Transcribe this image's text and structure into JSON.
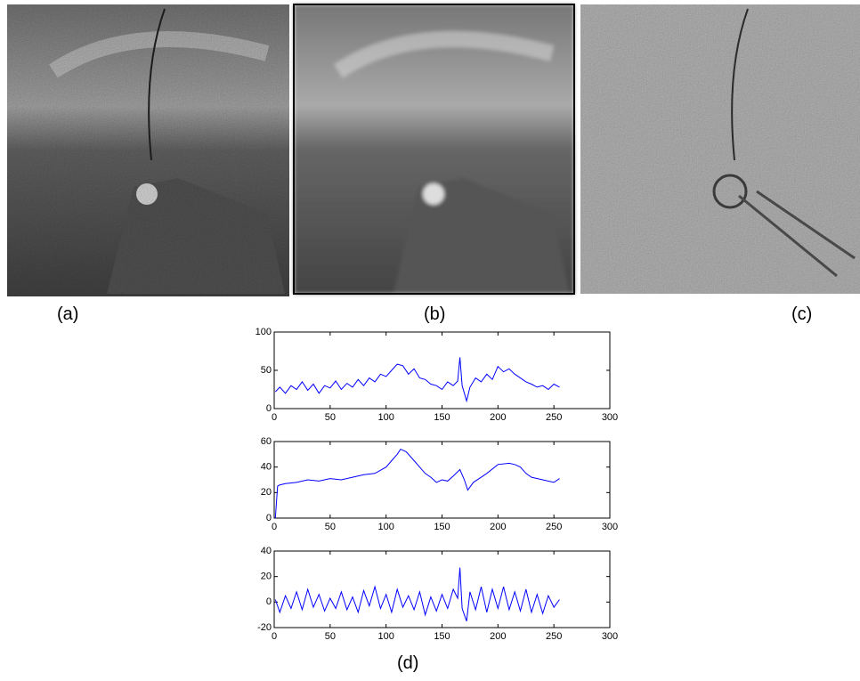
{
  "panel_labels": [
    "(a)",
    "(b)",
    "(c)",
    "(d)"
  ],
  "chart_data": [
    {
      "type": "line",
      "color": "#0000ff",
      "x": [
        1,
        5,
        10,
        15,
        20,
        25,
        30,
        35,
        40,
        45,
        50,
        55,
        60,
        65,
        70,
        75,
        80,
        85,
        90,
        95,
        100,
        105,
        110,
        115,
        120,
        125,
        130,
        135,
        140,
        145,
        150,
        155,
        160,
        164,
        166,
        168,
        172,
        175,
        180,
        185,
        190,
        195,
        200,
        205,
        210,
        215,
        220,
        225,
        230,
        235,
        240,
        245,
        250,
        255
      ],
      "values": [
        22,
        28,
        20,
        30,
        25,
        35,
        24,
        32,
        20,
        30,
        27,
        36,
        25,
        33,
        28,
        38,
        30,
        40,
        35,
        45,
        42,
        50,
        58,
        56,
        45,
        52,
        40,
        38,
        32,
        30,
        25,
        35,
        30,
        36,
        67,
        30,
        10,
        28,
        40,
        35,
        45,
        38,
        55,
        48,
        52,
        45,
        40,
        35,
        32,
        28,
        30,
        25,
        32,
        28
      ],
      "xlim": [
        0,
        300
      ],
      "xticks": [
        0,
        50,
        100,
        150,
        200,
        250,
        300
      ],
      "ylim": [
        0,
        100
      ],
      "yticks": [
        0,
        50,
        100
      ]
    },
    {
      "type": "line",
      "color": "#0000ff",
      "x": [
        1,
        3,
        5,
        10,
        20,
        30,
        40,
        50,
        60,
        70,
        80,
        90,
        100,
        105,
        110,
        113,
        118,
        125,
        130,
        135,
        140,
        145,
        150,
        155,
        160,
        166,
        170,
        173,
        178,
        185,
        190,
        200,
        210,
        215,
        220,
        225,
        230,
        240,
        250,
        255
      ],
      "values": [
        0,
        25,
        26,
        27,
        28,
        30,
        29,
        31,
        30,
        32,
        34,
        35,
        40,
        45,
        50,
        54,
        52,
        45,
        40,
        35,
        32,
        28,
        30,
        29,
        33,
        38,
        30,
        22,
        28,
        32,
        35,
        42,
        43,
        42,
        40,
        35,
        32,
        30,
        28,
        31
      ],
      "xlim": [
        0,
        300
      ],
      "xticks": [
        0,
        50,
        100,
        150,
        200,
        250,
        300
      ],
      "ylim": [
        0,
        60
      ],
      "yticks": [
        0,
        20,
        40,
        60
      ]
    },
    {
      "type": "line",
      "color": "#0000ff",
      "x": [
        1,
        5,
        10,
        15,
        20,
        25,
        30,
        35,
        40,
        45,
        50,
        55,
        60,
        65,
        70,
        75,
        80,
        85,
        90,
        95,
        100,
        105,
        110,
        115,
        120,
        125,
        130,
        135,
        140,
        145,
        150,
        155,
        160,
        164,
        166,
        168,
        172,
        175,
        180,
        185,
        190,
        195,
        200,
        205,
        210,
        215,
        220,
        225,
        230,
        235,
        240,
        245,
        250,
        255
      ],
      "values": [
        2,
        -8,
        5,
        -5,
        8,
        -6,
        10,
        -4,
        6,
        -7,
        3,
        -5,
        8,
        -6,
        4,
        -8,
        9,
        -3,
        12,
        -5,
        6,
        -8,
        10,
        -4,
        5,
        -6,
        8,
        -10,
        4,
        -7,
        6,
        -5,
        10,
        3,
        27,
        -5,
        -15,
        8,
        -6,
        12,
        -8,
        10,
        -5,
        12,
        -6,
        8,
        -7,
        10,
        -8,
        6,
        -9,
        5,
        -4,
        2
      ],
      "xlim": [
        0,
        300
      ],
      "xticks": [
        0,
        50,
        100,
        150,
        200,
        250,
        300
      ],
      "ylim": [
        -20,
        40
      ],
      "yticks": [
        -20,
        0,
        20,
        40
      ]
    }
  ]
}
